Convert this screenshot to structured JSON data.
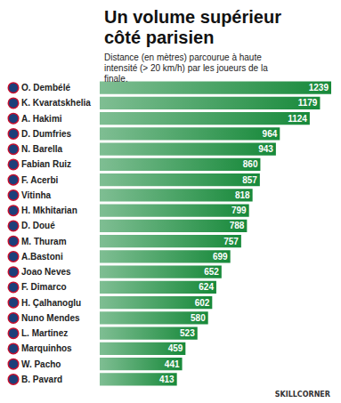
{
  "chart_data": {
    "type": "bar",
    "title": "Un volume supérieur côté parisien",
    "subtitle": "Distance (en mètres) parcourue à haute intensité (> 20 km/h) par les joueurs de la finale.",
    "annotations": [
      "SKILLCORNER"
    ],
    "orientation": "horizontal",
    "categories": [
      "O. Dembélé",
      "K. Kvaratskhelia",
      "A. Hakimi",
      "D. Dumfries",
      "N. Barella",
      "Fabian Ruiz",
      "F. Acerbi",
      "Vitinha",
      "H. Mkhitarian",
      "D. Doué",
      "M. Thuram",
      "A.Bastoni",
      "Joao Neves",
      "F. Dimarco",
      "H. Çalhanoglu",
      "Nuno Mendes",
      "L. Martinez",
      "Marquinhos",
      "W. Pacho",
      "B. Pavard"
    ],
    "values": [
      1239,
      1179,
      1124,
      964,
      943,
      860,
      857,
      818,
      799,
      788,
      757,
      699,
      652,
      624,
      602,
      580,
      523,
      459,
      441,
      413
    ],
    "color": "#17893a",
    "xlim": [
      0,
      1239
    ],
    "data_labels": true,
    "tick_labels": "y",
    "grid": false
  }
}
